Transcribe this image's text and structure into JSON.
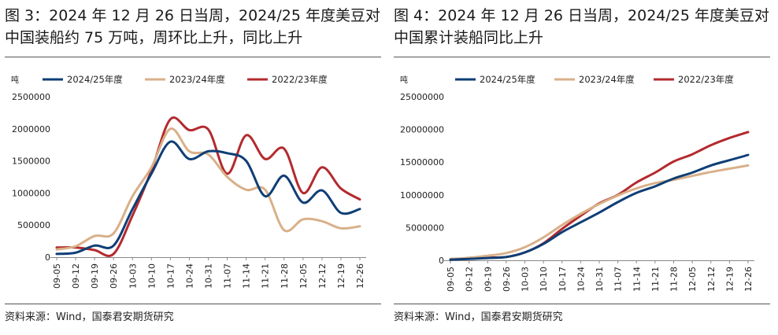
{
  "left": {
    "title_line1": "图 3：2024 年 12 月 26 日当周，2024/25 年度美豆对",
    "title_line2": "中国装船约 75 万吨，周环比上升，同比上升",
    "source": "资料来源：Wind，国泰君安期货研究"
  },
  "right": {
    "title_line1": "图 4：2024 年 12 月 26 日当周，2024/25 年度美豆对",
    "title_line2": "中国累计装船同比上升",
    "source": "资料来源：Wind，国泰君安期货研究"
  },
  "colors": {
    "s2425": "#0e3e75",
    "s2324": "#d9b089",
    "s2223": "#b32a2e",
    "axis": "#888888"
  },
  "chart_data": [
    {
      "type": "line",
      "unit": "吨",
      "categories": [
        "09-05",
        "09-12",
        "09-19",
        "09-26",
        "10-03",
        "10-10",
        "10-17",
        "10-24",
        "10-31",
        "11-07",
        "11-14",
        "11-21",
        "11-28",
        "12-05",
        "12-12",
        "12-19",
        "12-26"
      ],
      "ylim": [
        0,
        2500000
      ],
      "yticks": [
        0,
        500000,
        1000000,
        1500000,
        2000000,
        2500000
      ],
      "legend_position": "top",
      "series": [
        {
          "name": "2024/25年度",
          "color_key": "s2425",
          "values": [
            50000,
            70000,
            180000,
            180000,
            750000,
            1300000,
            1800000,
            1530000,
            1650000,
            1620000,
            1500000,
            950000,
            1270000,
            850000,
            1040000,
            690000,
            750000
          ]
        },
        {
          "name": "2023/24年度",
          "color_key": "s2324",
          "values": [
            120000,
            170000,
            330000,
            370000,
            950000,
            1400000,
            2000000,
            1650000,
            1600000,
            1250000,
            1050000,
            1050000,
            420000,
            590000,
            560000,
            450000,
            480000
          ]
        },
        {
          "name": "2022/23年度",
          "color_key": "s2223",
          "values": [
            150000,
            150000,
            110000,
            50000,
            650000,
            1350000,
            2150000,
            1980000,
            1990000,
            1300000,
            1900000,
            1530000,
            1690000,
            1000000,
            1400000,
            1070000,
            900000
          ]
        }
      ]
    },
    {
      "type": "line",
      "unit": "吨",
      "categories": [
        "09-05",
        "09-12",
        "09-19",
        "09-26",
        "10-03",
        "10-10",
        "10-17",
        "10-24",
        "10-31",
        "11-07",
        "11-14",
        "11-21",
        "11-28",
        "12-05",
        "12-12",
        "12-19",
        "12-26"
      ],
      "ylim": [
        0,
        25000000
      ],
      "yticks": [
        0,
        5000000,
        10000000,
        15000000,
        20000000,
        25000000
      ],
      "legend_position": "top",
      "series": [
        {
          "name": "2024/25年度",
          "color_key": "s2425",
          "values": [
            100000,
            200000,
            350000,
            500000,
            1200000,
            2500000,
            4300000,
            5800000,
            7300000,
            8900000,
            10300000,
            11300000,
            12500000,
            13400000,
            14500000,
            15300000,
            16100000
          ]
        },
        {
          "name": "2023/24年度",
          "color_key": "s2324",
          "values": [
            200000,
            400000,
            700000,
            1100000,
            2000000,
            3500000,
            5400000,
            7100000,
            8600000,
            9900000,
            11000000,
            11800000,
            12300000,
            12900000,
            13500000,
            14000000,
            14500000
          ]
        },
        {
          "name": "2022/23年度",
          "color_key": "s2223",
          "values": [
            100000,
            250000,
            400000,
            500000,
            1200000,
            2600000,
            4800000,
            6800000,
            8700000,
            10000000,
            11900000,
            13400000,
            15100000,
            16200000,
            17600000,
            18700000,
            19600000
          ]
        }
      ]
    }
  ]
}
